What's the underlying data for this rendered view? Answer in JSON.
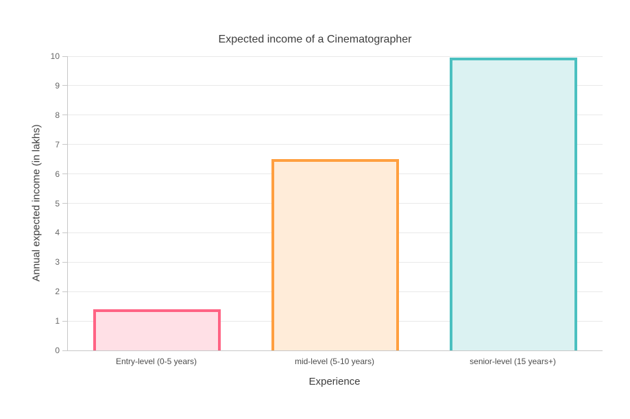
{
  "page": {
    "background": "#ffffff"
  },
  "chart_data": {
    "type": "bar",
    "title": "Expected income of a Cinematographer",
    "xlabel": "Experience",
    "ylabel": "Annual expected income (in lakhs)",
    "categories": [
      "Entry-level (0-5 years)",
      "mid-level (5-10 years)",
      "senior-level (15 years+)"
    ],
    "values": [
      1.4,
      6.5,
      9.95
    ],
    "ylim": [
      0,
      10
    ],
    "ytick_step": 1,
    "grid": true,
    "legend": "none",
    "series_colors": [
      {
        "border": "#FF6384",
        "fill": "#FFE0E6"
      },
      {
        "border": "#FF9F40",
        "fill": "#FFECD9"
      },
      {
        "border": "#4BC0C0",
        "fill": "#DBF2F2"
      }
    ],
    "axis_color": "#c7c7c7",
    "grid_color": "#e9e9e9",
    "tick_label_color": "#666666",
    "text_color": "#3d3d3d"
  }
}
